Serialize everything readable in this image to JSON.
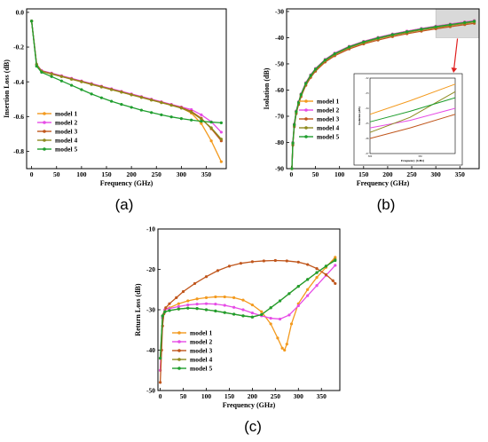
{
  "colors": {
    "model 1": "#f39a1e",
    "model 2": "#e64ce6",
    "model 3": "#c0561c",
    "model 4": "#8d8a1e",
    "model 5": "#1f9e2e",
    "highlight": "#d9d9d9",
    "arrow": "#e02020"
  },
  "chart_data": [
    {
      "id": "a",
      "type": "line",
      "caption": "(a)",
      "xlabel": "Frequency (GHz)",
      "ylabel": "Insertion Loss (dB)",
      "xlim": [
        -10,
        390
      ],
      "ylim": [
        -0.9,
        0.02
      ],
      "xticks": [
        0,
        50,
        100,
        150,
        200,
        250,
        300,
        350
      ],
      "yticks": [
        0.0,
        -0.2,
        -0.4,
        -0.6,
        -0.8
      ],
      "ytick_labels": [
        "0.0",
        "-0.2",
        "-0.4",
        "-0.6",
        "-0.8"
      ],
      "legend_position": "bottom-left",
      "series": [
        {
          "name": "model 1",
          "x": [
            0,
            10,
            20,
            40,
            60,
            80,
            100,
            120,
            140,
            160,
            180,
            200,
            220,
            240,
            260,
            280,
            300,
            320,
            340,
            360,
            380
          ],
          "y": [
            -0.05,
            -0.3,
            -0.34,
            -0.355,
            -0.37,
            -0.385,
            -0.4,
            -0.415,
            -0.43,
            -0.445,
            -0.46,
            -0.475,
            -0.49,
            -0.505,
            -0.52,
            -0.535,
            -0.55,
            -0.58,
            -0.64,
            -0.74,
            -0.86
          ]
        },
        {
          "name": "model 2",
          "x": [
            0,
            10,
            20,
            40,
            60,
            80,
            100,
            120,
            140,
            160,
            180,
            200,
            220,
            240,
            260,
            280,
            300,
            320,
            340,
            360,
            380
          ],
          "y": [
            -0.05,
            -0.3,
            -0.335,
            -0.35,
            -0.365,
            -0.38,
            -0.395,
            -0.41,
            -0.425,
            -0.44,
            -0.455,
            -0.47,
            -0.485,
            -0.5,
            -0.515,
            -0.53,
            -0.545,
            -0.56,
            -0.59,
            -0.63,
            -0.69
          ]
        },
        {
          "name": "model 3",
          "x": [
            0,
            10,
            20,
            40,
            60,
            80,
            100,
            120,
            140,
            160,
            180,
            200,
            220,
            240,
            260,
            280,
            300,
            320,
            340,
            360,
            380
          ],
          "y": [
            -0.05,
            -0.3,
            -0.338,
            -0.353,
            -0.368,
            -0.383,
            -0.398,
            -0.413,
            -0.428,
            -0.443,
            -0.458,
            -0.473,
            -0.488,
            -0.503,
            -0.518,
            -0.533,
            -0.548,
            -0.57,
            -0.61,
            -0.67,
            -0.74
          ]
        },
        {
          "name": "model 4",
          "x": [
            0,
            10,
            20,
            40,
            60,
            80,
            100,
            120,
            140,
            160,
            180,
            200,
            220,
            240,
            260,
            280,
            300,
            320,
            340,
            360,
            380
          ],
          "y": [
            -0.05,
            -0.3,
            -0.34,
            -0.355,
            -0.37,
            -0.385,
            -0.4,
            -0.415,
            -0.43,
            -0.445,
            -0.46,
            -0.475,
            -0.49,
            -0.505,
            -0.52,
            -0.535,
            -0.552,
            -0.575,
            -0.615,
            -0.665,
            -0.73
          ]
        },
        {
          "name": "model 5",
          "x": [
            0,
            10,
            20,
            40,
            60,
            80,
            100,
            120,
            140,
            160,
            180,
            200,
            220,
            240,
            260,
            280,
            300,
            320,
            340,
            360,
            380
          ],
          "y": [
            -0.05,
            -0.31,
            -0.345,
            -0.37,
            -0.395,
            -0.42,
            -0.445,
            -0.47,
            -0.492,
            -0.512,
            -0.53,
            -0.547,
            -0.563,
            -0.577,
            -0.59,
            -0.602,
            -0.612,
            -0.62,
            -0.627,
            -0.632,
            -0.636
          ]
        }
      ]
    },
    {
      "id": "b",
      "type": "line",
      "caption": "(b)",
      "xlabel": "Frequency (GHz)",
      "ylabel": "Isolation (dB)",
      "xlim": [
        -10,
        390
      ],
      "ylim": [
        -90,
        -29
      ],
      "xticks": [
        0,
        50,
        100,
        150,
        200,
        250,
        300,
        350
      ],
      "yticks": [
        -30,
        -40,
        -50,
        -60,
        -70,
        -80,
        -90
      ],
      "legend_position": "bottom-center",
      "highlight_region": {
        "x": [
          300,
          390
        ],
        "y": [
          -29,
          -40
        ]
      },
      "series": [
        {
          "name": "model 1",
          "x": [
            1,
            3,
            6,
            10,
            15,
            20,
            30,
            40,
            50,
            70,
            90,
            120,
            150,
            180,
            210,
            240,
            270,
            300,
            330,
            360,
            380
          ],
          "y": [
            -90,
            -80,
            -73,
            -68,
            -64.5,
            -61.5,
            -57.2,
            -54.2,
            -51.8,
            -48.3,
            -45.9,
            -43.3,
            -41.4,
            -39.9,
            -38.6,
            -37.5,
            -36.5,
            -35.6,
            -34.8,
            -34.0,
            -33.5
          ]
        },
        {
          "name": "model 2",
          "x": [
            1,
            3,
            6,
            10,
            15,
            20,
            30,
            40,
            50,
            70,
            90,
            120,
            150,
            180,
            210,
            240,
            270,
            300,
            330,
            360,
            380
          ],
          "y": [
            -90,
            -80,
            -73,
            -68,
            -64.5,
            -61.5,
            -57.2,
            -54.2,
            -51.8,
            -48.3,
            -45.9,
            -43.3,
            -41.4,
            -39.9,
            -38.6,
            -37.5,
            -36.5,
            -35.6,
            -34.8,
            -34.0,
            -33.5
          ]
        },
        {
          "name": "model 3",
          "x": [
            1,
            3,
            6,
            10,
            15,
            20,
            30,
            40,
            50,
            70,
            90,
            120,
            150,
            180,
            210,
            240,
            270,
            300,
            330,
            360,
            380
          ],
          "y": [
            -90,
            -81,
            -74,
            -69,
            -65.5,
            -62.5,
            -58.2,
            -55.2,
            -52.8,
            -49.3,
            -46.9,
            -44.3,
            -42.4,
            -40.9,
            -39.6,
            -38.5,
            -37.5,
            -36.6,
            -35.8,
            -35.0,
            -34.5
          ]
        },
        {
          "name": "model 4",
          "x": [
            1,
            3,
            6,
            10,
            15,
            20,
            30,
            40,
            50,
            70,
            90,
            120,
            150,
            180,
            210,
            240,
            270,
            300,
            330,
            360,
            380
          ],
          "y": [
            -90,
            -80.5,
            -73.5,
            -68.5,
            -65,
            -62,
            -57.7,
            -54.7,
            -52.3,
            -48.8,
            -46.4,
            -43.8,
            -41.9,
            -40.4,
            -39.1,
            -38.0,
            -37.0,
            -36.1,
            -35.3,
            -34.5,
            -34.0
          ]
        },
        {
          "name": "model 5",
          "x": [
            1,
            3,
            6,
            10,
            15,
            20,
            30,
            40,
            50,
            70,
            90,
            120,
            150,
            180,
            210,
            240,
            270,
            300,
            330,
            360,
            380
          ],
          "y": [
            -90,
            -80.2,
            -73.2,
            -68.2,
            -64.7,
            -61.7,
            -57.4,
            -54.4,
            -52.0,
            -48.5,
            -46.1,
            -43.5,
            -41.6,
            -40.1,
            -38.8,
            -37.7,
            -36.7,
            -35.8,
            -35.0,
            -34.2,
            -33.7
          ]
        }
      ],
      "inset": {
        "xlabel": "Frequency (GHz)",
        "ylabel": "Isolation (dB)",
        "xlim": [
          300,
          385
        ],
        "ylim": [
          -37,
          -32
        ],
        "xticks": [
          300,
          350
        ],
        "yticks": [
          -32,
          -33,
          -34,
          -35,
          -36,
          -37
        ],
        "series": [
          {
            "name": "model 1",
            "x": [
              300,
              340,
              385
            ],
            "y": [
              -34.4,
              -33.5,
              -32.4
            ]
          },
          {
            "name": "model 2",
            "x": [
              300,
              340,
              385
            ],
            "y": [
              -35.3,
              -34.8,
              -34.0
            ]
          },
          {
            "name": "model 3",
            "x": [
              300,
              340,
              385
            ],
            "y": [
              -36.0,
              -35.3,
              -34.4
            ]
          },
          {
            "name": "model 4",
            "x": [
              300,
              340,
              385
            ],
            "y": [
              -35.6,
              -34.6,
              -32.9
            ]
          },
          {
            "name": "model 5",
            "x": [
              300,
              340,
              385
            ],
            "y": [
              -34.9,
              -34.2,
              -33.3
            ]
          }
        ]
      }
    },
    {
      "id": "c",
      "type": "line",
      "caption": "(c)",
      "xlabel": "Frequency (GHz)",
      "ylabel": "Return Loss (dB)",
      "xlim": [
        -5,
        390
      ],
      "ylim": [
        -50,
        -10
      ],
      "xticks": [
        0,
        50,
        100,
        150,
        200,
        250,
        300,
        350
      ],
      "yticks": [
        -10,
        -20,
        -30,
        -40,
        -50
      ],
      "legend_position": "bottom-left",
      "series": [
        {
          "name": "model 1",
          "x": [
            0,
            5,
            10,
            20,
            40,
            60,
            80,
            100,
            120,
            140,
            160,
            180,
            200,
            220,
            240,
            255,
            265,
            270,
            275,
            285,
            300,
            320,
            340,
            360,
            380
          ],
          "y": [
            -45,
            -32,
            -30,
            -29.5,
            -28.5,
            -27.8,
            -27.3,
            -27,
            -26.8,
            -26.8,
            -27,
            -27.6,
            -28.8,
            -30.5,
            -33.5,
            -37,
            -39.5,
            -40,
            -38.5,
            -33.5,
            -28.5,
            -25,
            -22,
            -19.5,
            -17
          ]
        },
        {
          "name": "model 2",
          "x": [
            0,
            5,
            10,
            20,
            40,
            60,
            80,
            100,
            120,
            140,
            160,
            180,
            200,
            220,
            240,
            260,
            280,
            300,
            320,
            340,
            360,
            380
          ],
          "y": [
            -45,
            -32,
            -30,
            -29.7,
            -29.2,
            -28.8,
            -28.6,
            -28.5,
            -28.6,
            -28.9,
            -29.4,
            -30,
            -30.8,
            -31.5,
            -32.1,
            -32.3,
            -31.3,
            -29,
            -26.5,
            -24,
            -21.5,
            -19
          ]
        },
        {
          "name": "model 3",
          "x": [
            0,
            3,
            5,
            8,
            12,
            20,
            35,
            50,
            75,
            100,
            125,
            150,
            175,
            200,
            225,
            250,
            275,
            300,
            320,
            340,
            360,
            375,
            380
          ],
          "y": [
            -48,
            -40,
            -34,
            -31,
            -29.5,
            -28.5,
            -27,
            -25.5,
            -23.5,
            -21.8,
            -20.3,
            -19.2,
            -18.5,
            -18.1,
            -17.9,
            -17.8,
            -17.9,
            -18.2,
            -18.8,
            -19.8,
            -21.3,
            -22.8,
            -23.5
          ]
        },
        {
          "name": "model 4",
          "x": [
            0,
            5,
            10,
            20,
            40,
            60,
            80,
            100,
            120,
            140,
            160,
            180,
            200,
            220,
            240,
            260,
            280,
            300,
            320,
            340,
            360,
            380
          ],
          "y": [
            -42,
            -31.5,
            -30.5,
            -30.2,
            -29.8,
            -29.6,
            -29.7,
            -30,
            -30.3,
            -30.7,
            -31.1,
            -31.5,
            -31.8,
            -31.2,
            -29.5,
            -27.8,
            -26,
            -24.2,
            -22.5,
            -20.8,
            -19.2,
            -17.5
          ]
        },
        {
          "name": "model 5",
          "x": [
            0,
            5,
            10,
            20,
            40,
            60,
            80,
            100,
            120,
            140,
            160,
            180,
            200,
            220,
            240,
            260,
            280,
            300,
            320,
            340,
            360,
            380
          ],
          "y": [
            -42,
            -31.5,
            -30.5,
            -30.2,
            -29.8,
            -29.6,
            -29.7,
            -30,
            -30.3,
            -30.7,
            -31.1,
            -31.5,
            -31.8,
            -31.2,
            -29.5,
            -27.8,
            -26,
            -24.2,
            -22.5,
            -20.8,
            -19.2,
            -17.8
          ]
        }
      ]
    }
  ]
}
